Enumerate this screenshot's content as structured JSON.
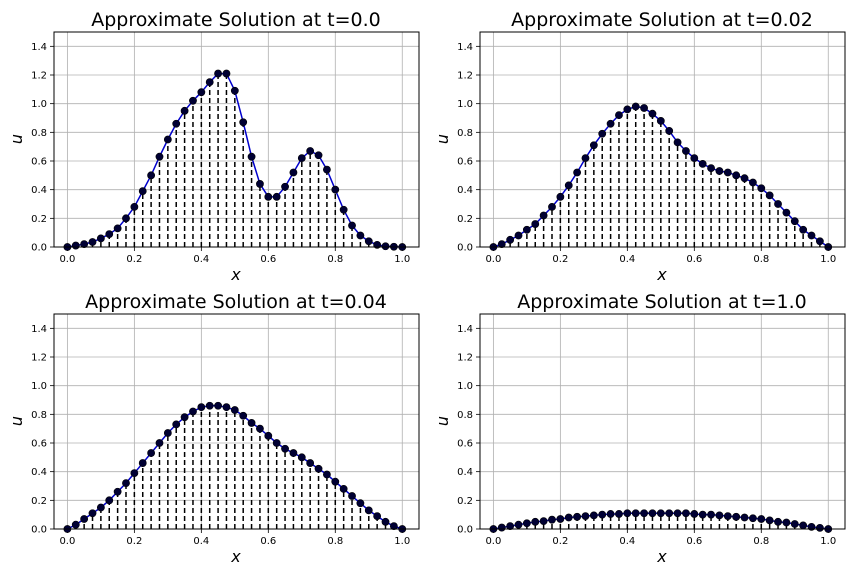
{
  "chart_data": [
    {
      "type": "line",
      "title": "Approximate Solution at t=0.0",
      "xlabel": "x",
      "ylabel": "u",
      "xlim": [
        -0.04,
        1.05
      ],
      "ylim": [
        0,
        1.5
      ],
      "xticks": [
        "0.0",
        "0.2",
        "0.4",
        "0.6",
        "0.8",
        "1.0"
      ],
      "yticks": [
        "0.0",
        "0.2",
        "0.4",
        "0.6",
        "0.8",
        "1.0",
        "1.2",
        "1.4"
      ],
      "grid": true,
      "series_color": "#0000cc",
      "marker_color": "#000033",
      "stem_color": "#000000",
      "x": [
        0.0,
        0.025,
        0.05,
        0.075,
        0.1,
        0.125,
        0.15,
        0.175,
        0.2,
        0.225,
        0.25,
        0.275,
        0.3,
        0.325,
        0.35,
        0.375,
        0.4,
        0.425,
        0.45,
        0.475,
        0.5,
        0.525,
        0.55,
        0.575,
        0.6,
        0.625,
        0.65,
        0.675,
        0.7,
        0.725,
        0.75,
        0.775,
        0.8,
        0.825,
        0.85,
        0.875,
        0.9,
        0.925,
        0.95,
        0.975,
        1.0
      ],
      "y": [
        0.0,
        0.01,
        0.02,
        0.035,
        0.06,
        0.09,
        0.13,
        0.2,
        0.28,
        0.39,
        0.5,
        0.63,
        0.75,
        0.86,
        0.95,
        1.02,
        1.08,
        1.15,
        1.21,
        1.21,
        1.09,
        0.87,
        0.63,
        0.44,
        0.35,
        0.35,
        0.42,
        0.52,
        0.62,
        0.67,
        0.64,
        0.54,
        0.4,
        0.26,
        0.15,
        0.08,
        0.04,
        0.015,
        0.005,
        0.002,
        0.0
      ]
    },
    {
      "type": "line",
      "title": "Approximate Solution at t=0.02",
      "xlabel": "x",
      "ylabel": "u",
      "xlim": [
        -0.04,
        1.05
      ],
      "ylim": [
        0,
        1.5
      ],
      "xticks": [
        "0.0",
        "0.2",
        "0.4",
        "0.6",
        "0.8",
        "1.0"
      ],
      "yticks": [
        "0.0",
        "0.2",
        "0.4",
        "0.6",
        "0.8",
        "1.0",
        "1.2",
        "1.4"
      ],
      "grid": true,
      "series_color": "#0000cc",
      "marker_color": "#000033",
      "stem_color": "#000000",
      "x": [
        0.0,
        0.025,
        0.05,
        0.075,
        0.1,
        0.125,
        0.15,
        0.175,
        0.2,
        0.225,
        0.25,
        0.275,
        0.3,
        0.325,
        0.35,
        0.375,
        0.4,
        0.425,
        0.45,
        0.475,
        0.5,
        0.525,
        0.55,
        0.575,
        0.6,
        0.625,
        0.65,
        0.675,
        0.7,
        0.725,
        0.75,
        0.775,
        0.8,
        0.825,
        0.85,
        0.875,
        0.9,
        0.925,
        0.95,
        0.975,
        1.0
      ],
      "y": [
        0.0,
        0.02,
        0.05,
        0.08,
        0.12,
        0.16,
        0.22,
        0.28,
        0.35,
        0.43,
        0.52,
        0.62,
        0.71,
        0.79,
        0.86,
        0.92,
        0.96,
        0.98,
        0.97,
        0.93,
        0.88,
        0.81,
        0.73,
        0.67,
        0.62,
        0.58,
        0.55,
        0.53,
        0.52,
        0.5,
        0.48,
        0.45,
        0.41,
        0.36,
        0.3,
        0.24,
        0.18,
        0.12,
        0.08,
        0.04,
        0.0
      ]
    },
    {
      "type": "line",
      "title": "Approximate Solution at t=0.04",
      "xlabel": "x",
      "ylabel": "u",
      "xlim": [
        -0.04,
        1.05
      ],
      "ylim": [
        0,
        1.5
      ],
      "xticks": [
        "0.0",
        "0.2",
        "0.4",
        "0.6",
        "0.8",
        "1.0"
      ],
      "yticks": [
        "0.0",
        "0.2",
        "0.4",
        "0.6",
        "0.8",
        "1.0",
        "1.2",
        "1.4"
      ],
      "grid": true,
      "series_color": "#0000cc",
      "marker_color": "#000033",
      "stem_color": "#000000",
      "x": [
        0.0,
        0.025,
        0.05,
        0.075,
        0.1,
        0.125,
        0.15,
        0.175,
        0.2,
        0.225,
        0.25,
        0.275,
        0.3,
        0.325,
        0.35,
        0.375,
        0.4,
        0.425,
        0.45,
        0.475,
        0.5,
        0.525,
        0.55,
        0.575,
        0.6,
        0.625,
        0.65,
        0.675,
        0.7,
        0.725,
        0.75,
        0.775,
        0.8,
        0.825,
        0.85,
        0.875,
        0.9,
        0.925,
        0.95,
        0.975,
        1.0
      ],
      "y": [
        0.0,
        0.03,
        0.07,
        0.11,
        0.15,
        0.2,
        0.26,
        0.32,
        0.39,
        0.46,
        0.53,
        0.6,
        0.67,
        0.73,
        0.78,
        0.82,
        0.85,
        0.86,
        0.86,
        0.85,
        0.83,
        0.79,
        0.74,
        0.7,
        0.65,
        0.6,
        0.56,
        0.53,
        0.5,
        0.46,
        0.42,
        0.38,
        0.33,
        0.28,
        0.23,
        0.18,
        0.13,
        0.09,
        0.05,
        0.02,
        0.0
      ]
    },
    {
      "type": "line",
      "title": "Approximate Solution at t=1.0",
      "xlabel": "x",
      "ylabel": "u",
      "xlim": [
        -0.04,
        1.05
      ],
      "ylim": [
        0,
        1.5
      ],
      "xticks": [
        "0.0",
        "0.2",
        "0.4",
        "0.6",
        "0.8",
        "1.0"
      ],
      "yticks": [
        "0.0",
        "0.2",
        "0.4",
        "0.6",
        "0.8",
        "1.0",
        "1.2",
        "1.4"
      ],
      "grid": true,
      "series_color": "#0000cc",
      "marker_color": "#000033",
      "stem_color": "#000000",
      "x": [
        0.0,
        0.025,
        0.05,
        0.075,
        0.1,
        0.125,
        0.15,
        0.175,
        0.2,
        0.225,
        0.25,
        0.275,
        0.3,
        0.325,
        0.35,
        0.375,
        0.4,
        0.425,
        0.45,
        0.475,
        0.5,
        0.525,
        0.55,
        0.575,
        0.6,
        0.625,
        0.65,
        0.675,
        0.7,
        0.725,
        0.75,
        0.775,
        0.8,
        0.825,
        0.85,
        0.875,
        0.9,
        0.925,
        0.95,
        0.975,
        1.0
      ],
      "y": [
        0.0,
        0.01,
        0.02,
        0.03,
        0.04,
        0.05,
        0.055,
        0.065,
        0.07,
        0.08,
        0.085,
        0.09,
        0.095,
        0.1,
        0.105,
        0.105,
        0.11,
        0.11,
        0.11,
        0.11,
        0.11,
        0.11,
        0.11,
        0.11,
        0.105,
        0.1,
        0.1,
        0.095,
        0.09,
        0.085,
        0.08,
        0.075,
        0.07,
        0.06,
        0.05,
        0.045,
        0.035,
        0.025,
        0.015,
        0.008,
        0.0
      ]
    }
  ]
}
